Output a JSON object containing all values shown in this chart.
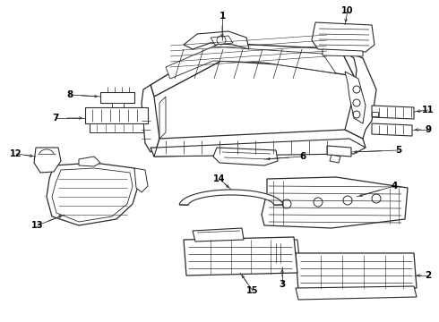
{
  "bg_color": "#ffffff",
  "line_color": "#2a2a2a",
  "text_color": "#000000",
  "fig_width": 4.9,
  "fig_height": 3.6,
  "dpi": 100
}
